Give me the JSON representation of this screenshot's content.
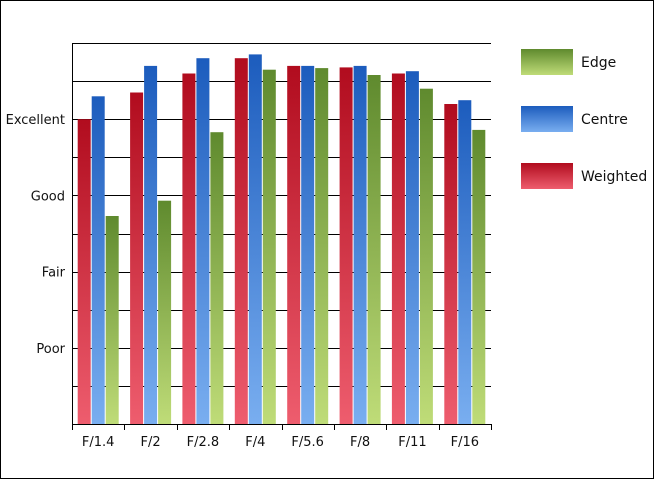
{
  "chart_data": {
    "type": "bar",
    "title": "",
    "xlabel": "",
    "ylabel": "",
    "categories": [
      "F/1.4",
      "F/2",
      "F/2.8",
      "F/4",
      "F/5.6",
      "F/8",
      "F/11",
      "F/16"
    ],
    "y_ticks": [
      {
        "label": "Poor",
        "value": 1
      },
      {
        "label": "Fair",
        "value": 2
      },
      {
        "label": "Good",
        "value": 3
      },
      {
        "label": "Excellent",
        "value": 4
      }
    ],
    "ylim": [
      0,
      5
    ],
    "grid_step": 0.5,
    "grid": true,
    "legend_position": "right",
    "series": [
      {
        "name": "Weighted",
        "color_top": "#b10c1e",
        "color_bottom": "#ee5d6e",
        "values": [
          4.0,
          4.35,
          4.6,
          4.8,
          4.7,
          4.68,
          4.6,
          4.2
        ]
      },
      {
        "name": "Centre",
        "color_top": "#1c5cbd",
        "color_bottom": "#79aef0",
        "values": [
          4.3,
          4.7,
          4.8,
          4.85,
          4.7,
          4.7,
          4.63,
          4.25
        ]
      },
      {
        "name": "Edge",
        "color_top": "#5f8a2e",
        "color_bottom": "#bfdc78",
        "values": [
          2.73,
          2.93,
          3.83,
          4.65,
          4.67,
          4.58,
          4.4,
          3.86
        ]
      }
    ],
    "legend_order": [
      "Edge",
      "Centre",
      "Weighted"
    ]
  }
}
